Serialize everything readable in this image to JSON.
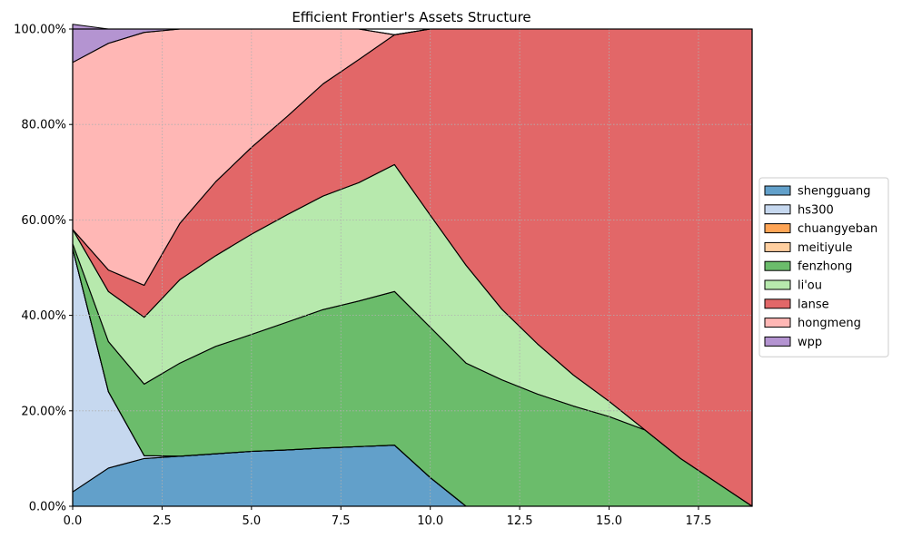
{
  "chart_data": {
    "type": "area",
    "stacked": true,
    "title": "Efficient Frontier's Assets Structure",
    "xlabel": "",
    "ylabel": "",
    "x": [
      0,
      1,
      2,
      3,
      4,
      5,
      6,
      7,
      8,
      9,
      10,
      11,
      12,
      13,
      14,
      15,
      16,
      17,
      18,
      19
    ],
    "xlim": [
      0,
      19
    ],
    "ylim": [
      0,
      1
    ],
    "x_ticks": [
      0,
      2.5,
      5,
      7.5,
      10,
      12.5,
      15,
      17.5
    ],
    "x_tick_labels": [
      "0.0",
      "2.5",
      "5.0",
      "7.5",
      "10.0",
      "12.5",
      "15.0",
      "17.5"
    ],
    "y_ticks": [
      0,
      0.2,
      0.4,
      0.6,
      0.8,
      1.0
    ],
    "y_tick_labels": [
      "0.00%",
      "20.00%",
      "40.00%",
      "60.00%",
      "80.00%",
      "100.00%"
    ],
    "grid": true,
    "legend_position": "right",
    "series": [
      {
        "name": "shengguang",
        "color": "#1f77b4",
        "values": [
          0.03,
          0.08,
          0.1,
          0.105,
          0.11,
          0.115,
          0.118,
          0.122,
          0.125,
          0.128,
          0.06,
          0,
          0,
          0,
          0,
          0,
          0,
          0,
          0,
          0
        ]
      },
      {
        "name": "hs300",
        "color": "#aec7e8",
        "values": [
          0.51,
          0.16,
          0.006,
          0,
          0,
          0,
          0,
          0,
          0,
          0,
          0,
          0,
          0,
          0,
          0,
          0,
          0,
          0,
          0,
          0
        ]
      },
      {
        "name": "chuangyeban",
        "color": "#ff7f0e",
        "values": [
          0,
          0,
          0,
          0,
          0,
          0,
          0,
          0,
          0,
          0,
          0,
          0,
          0,
          0,
          0,
          0,
          0,
          0,
          0,
          0
        ]
      },
      {
        "name": "meitiyule",
        "color": "#ffbb78",
        "values": [
          0,
          0,
          0,
          0,
          0,
          0,
          0,
          0,
          0,
          0,
          0,
          0,
          0,
          0,
          0,
          0,
          0,
          0,
          0,
          0
        ]
      },
      {
        "name": "fenzhong",
        "color": "#2ca02c",
        "values": [
          0.01,
          0.105,
          0.15,
          0.195,
          0.225,
          0.245,
          0.268,
          0.29,
          0.305,
          0.322,
          0.315,
          0.3,
          0.265,
          0.235,
          0.21,
          0.188,
          0.16,
          0.1,
          0.05,
          0
        ]
      },
      {
        "name": "li'ou",
        "color": "#98df8a",
        "values": [
          0.03,
          0.105,
          0.14,
          0.175,
          0.19,
          0.21,
          0.225,
          0.238,
          0.248,
          0.266,
          0.235,
          0.205,
          0.148,
          0.105,
          0.065,
          0.032,
          0,
          0,
          0,
          0
        ]
      },
      {
        "name": "lanse",
        "color": "#d62728",
        "values": [
          0,
          0.045,
          0.067,
          0.118,
          0.155,
          0.182,
          0.206,
          0.235,
          0.258,
          0.272,
          0.39,
          0.495,
          0.587,
          0.66,
          0.725,
          0.78,
          0.84,
          0.9,
          0.95,
          1.0
        ]
      },
      {
        "name": "hongmeng",
        "color": "#ff9896",
        "values": [
          0.35,
          0.475,
          0.53,
          0.407,
          0.32,
          0.248,
          0.183,
          0.115,
          0.064,
          0.0,
          0,
          0,
          0,
          0,
          0,
          0,
          0,
          0,
          0,
          0
        ]
      },
      {
        "name": "wpp",
        "color": "#9467bd",
        "values": [
          0.08,
          0.03,
          0.007,
          0,
          0,
          0,
          0,
          0,
          0,
          0,
          0,
          0,
          0,
          0,
          0,
          0,
          0,
          0,
          0,
          0
        ]
      }
    ]
  }
}
